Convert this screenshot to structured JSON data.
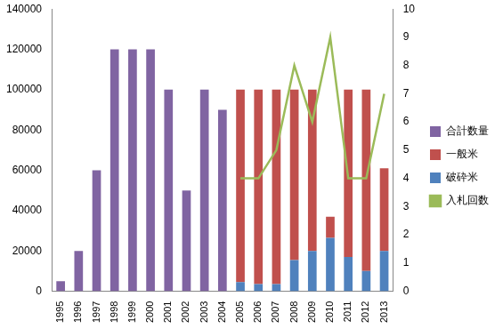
{
  "chart_data": {
    "type": "bar",
    "categories": [
      "1995",
      "1996",
      "1997",
      "1998",
      "1999",
      "2000",
      "2001",
      "2002",
      "2003",
      "2004",
      "2005",
      "2006",
      "2007",
      "2008",
      "2009",
      "2010",
      "2011",
      "2012",
      "2013"
    ],
    "series": [
      {
        "name": "合計数量",
        "type": "bar",
        "color": "#8064a2",
        "values": [
          5000,
          20000,
          60000,
          120000,
          120000,
          120000,
          100000,
          50000,
          100000,
          90000,
          null,
          null,
          null,
          null,
          null,
          null,
          null,
          null,
          null
        ]
      },
      {
        "name": "一般米",
        "type": "bar",
        "color": "#c0504d",
        "values": [
          null,
          null,
          null,
          null,
          null,
          null,
          null,
          null,
          null,
          null,
          95500,
          96500,
          96500,
          84500,
          80000,
          10500,
          83000,
          90000,
          41000
        ]
      },
      {
        "name": "破砕米",
        "type": "bar",
        "color": "#4f81bd",
        "values": [
          null,
          null,
          null,
          null,
          null,
          null,
          null,
          null,
          null,
          null,
          4500,
          3500,
          3500,
          15500,
          20000,
          26500,
          17000,
          10000,
          20000
        ]
      },
      {
        "name": "入札回数",
        "type": "line",
        "axis": "y2",
        "color": "#9bbb59",
        "marker": "none",
        "values": [
          null,
          null,
          null,
          null,
          null,
          null,
          null,
          null,
          null,
          null,
          4,
          4,
          5,
          8,
          6,
          9,
          4,
          4,
          7
        ]
      }
    ],
    "ylim": [
      0,
      140000
    ],
    "yticks": [
      0,
      20000,
      40000,
      60000,
      80000,
      100000,
      120000,
      140000
    ],
    "y2lim": [
      0,
      10
    ],
    "y2ticks": [
      0,
      1,
      2,
      3,
      4,
      5,
      6,
      7,
      8,
      9,
      10
    ],
    "stacked": true,
    "grid": false,
    "legend": "right"
  }
}
